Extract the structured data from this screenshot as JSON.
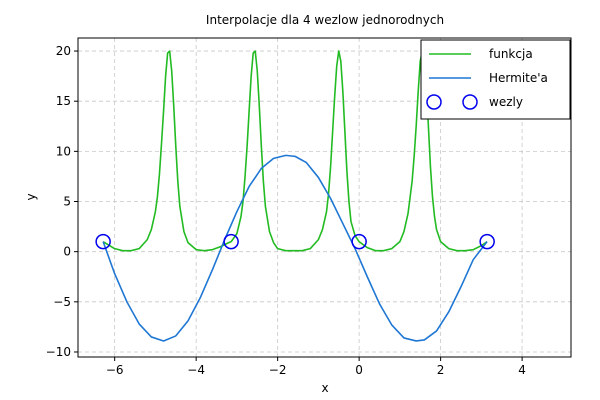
{
  "chart_data": {
    "type": "line",
    "title": "Interpolacje dla 4 wezlow jednorodnych",
    "xlabel": "x",
    "ylabel": "y",
    "xlim": [
      -6.9,
      5.2
    ],
    "ylim": [
      -10.5,
      21.3
    ],
    "xticks": [
      -6,
      -4,
      -2,
      0,
      2,
      4
    ],
    "yticks": [
      -10,
      -5,
      0,
      5,
      10,
      15,
      20
    ],
    "grid": true,
    "legend_position": "top-right",
    "series": [
      {
        "name": "funkcja",
        "kind": "line",
        "color": "#22bb22",
        "x": [
          -6.283,
          -6.0,
          -5.8,
          -5.6,
          -5.4,
          -5.2,
          -5.1,
          -5.0,
          -4.95,
          -4.9,
          -4.85,
          -4.8,
          -4.75,
          -4.7,
          -4.65,
          -4.6,
          -4.55,
          -4.5,
          -4.45,
          -4.4,
          -4.3,
          -4.2,
          -4.0,
          -3.8,
          -3.6,
          -3.4,
          -3.2,
          -3.14,
          -3.0,
          -2.9,
          -2.85,
          -2.8,
          -2.75,
          -2.7,
          -2.65,
          -2.6,
          -2.55,
          -2.5,
          -2.45,
          -2.4,
          -2.35,
          -2.3,
          -2.2,
          -2.1,
          -2.0,
          -1.8,
          -1.6,
          -1.4,
          -1.2,
          -1.0,
          -0.9,
          -0.8,
          -0.75,
          -0.7,
          -0.65,
          -0.6,
          -0.55,
          -0.5,
          -0.45,
          -0.4,
          -0.35,
          -0.3,
          -0.25,
          -0.2,
          -0.1,
          0.0,
          0.2,
          0.4,
          0.6,
          0.8,
          1.0,
          1.1,
          1.2,
          1.3,
          1.35,
          1.4,
          1.45,
          1.5,
          1.55,
          1.6,
          1.65,
          1.7,
          1.75,
          1.8,
          1.85,
          1.9,
          2.0,
          2.2,
          2.4,
          2.6,
          2.8,
          3.0,
          3.14
        ],
        "y": [
          1.0,
          0.3,
          0.1,
          0.1,
          0.3,
          1.2,
          2.2,
          4.0,
          5.5,
          7.8,
          10.8,
          14.0,
          17.5,
          19.8,
          20.0,
          18.0,
          14.5,
          10.5,
          7.0,
          4.5,
          2.0,
          0.9,
          0.2,
          0.1,
          0.2,
          0.5,
          0.9,
          1.0,
          1.8,
          3.5,
          5.0,
          7.5,
          10.5,
          14.0,
          17.5,
          19.8,
          20.0,
          18.0,
          14.5,
          10.5,
          7.0,
          4.5,
          2.0,
          0.9,
          0.3,
          0.1,
          0.1,
          0.1,
          0.3,
          1.2,
          2.2,
          4.0,
          5.8,
          8.5,
          12.0,
          15.5,
          18.5,
          20.0,
          19.0,
          16.0,
          12.0,
          8.0,
          5.0,
          3.0,
          1.6,
          1.0,
          0.4,
          0.1,
          0.1,
          0.3,
          1.0,
          2.0,
          3.8,
          7.0,
          9.5,
          12.5,
          16.0,
          19.0,
          20.0,
          19.2,
          16.5,
          12.5,
          8.5,
          5.5,
          3.5,
          2.2,
          1.0,
          0.3,
          0.1,
          0.1,
          0.2,
          0.6,
          1.0
        ]
      },
      {
        "name": "Hermite'a",
        "kind": "line",
        "color": "#1f77d4",
        "x": [
          -6.283,
          -6.0,
          -5.7,
          -5.4,
          -5.1,
          -4.8,
          -4.5,
          -4.2,
          -3.9,
          -3.6,
          -3.3,
          -3.0,
          -2.7,
          -2.4,
          -2.1,
          -1.8,
          -1.57,
          -1.3,
          -1.0,
          -0.7,
          -0.4,
          -0.1,
          0.2,
          0.5,
          0.8,
          1.1,
          1.4,
          1.6,
          1.9,
          2.2,
          2.5,
          2.8,
          3.14
        ],
        "y": [
          1.0,
          -2.2,
          -5.0,
          -7.2,
          -8.5,
          -8.9,
          -8.4,
          -6.9,
          -4.6,
          -1.8,
          1.2,
          4.0,
          6.5,
          8.3,
          9.3,
          9.6,
          9.5,
          8.9,
          7.4,
          5.3,
          2.8,
          0.3,
          -2.5,
          -5.2,
          -7.3,
          -8.6,
          -8.9,
          -8.8,
          -7.9,
          -6.0,
          -3.5,
          -0.8,
          1.0
        ]
      },
      {
        "name": "wezly",
        "kind": "scatter",
        "color": "#0000ee",
        "x": [
          -6.283,
          -3.142,
          0.0,
          3.142
        ],
        "y": [
          1.0,
          1.0,
          1.0,
          1.0
        ]
      }
    ]
  }
}
